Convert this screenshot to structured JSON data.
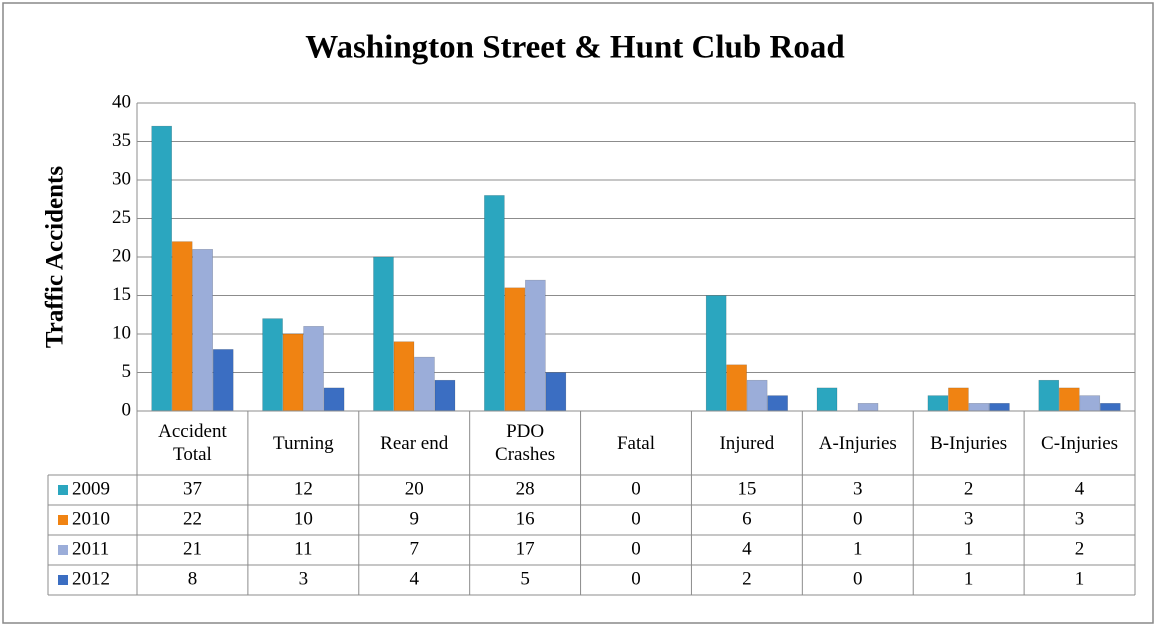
{
  "chart_data": {
    "type": "bar",
    "title": "Washington Street & Hunt Club Road",
    "y_label": "Traffic Accidents",
    "categories": [
      "Accident Total",
      "Turning",
      "Rear end",
      "PDO Crashes",
      "Fatal",
      "Injured",
      "A-Injuries",
      "B-Injuries",
      "C-Injuries"
    ],
    "series": [
      {
        "name": "2009",
        "color": "#2ba6bf",
        "values": [
          37,
          12,
          20,
          28,
          0,
          15,
          3,
          2,
          4
        ]
      },
      {
        "name": "2010",
        "color": "#f08312",
        "values": [
          22,
          10,
          9,
          16,
          0,
          6,
          0,
          3,
          3
        ]
      },
      {
        "name": "2011",
        "color": "#9badd9",
        "values": [
          21,
          11,
          7,
          17,
          0,
          4,
          1,
          1,
          2
        ]
      },
      {
        "name": "2012",
        "color": "#3b6ec2",
        "values": [
          8,
          3,
          4,
          5,
          0,
          2,
          0,
          1,
          1
        ]
      }
    ],
    "ylim": [
      0,
      40
    ],
    "yticks": [
      0,
      5,
      10,
      15,
      20,
      25,
      30,
      35,
      40
    ],
    "grid": true,
    "data_table": true
  }
}
